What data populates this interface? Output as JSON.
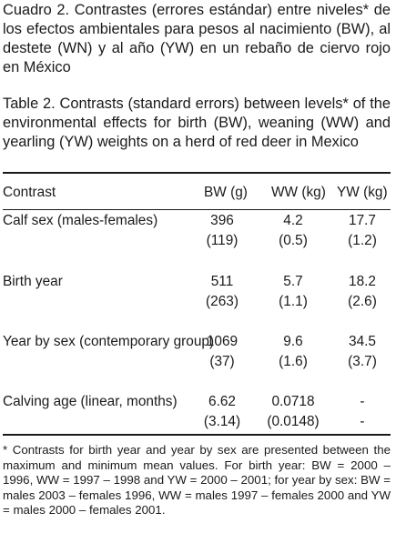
{
  "caption_es": "Cuadro 2. Contrastes (errores estándar) entre niveles* de los efectos ambientales para pesos al nacimiento (BW), al destete (WN) y al año (YW) en un rebaño de ciervo rojo en México",
  "caption_en": "Table 2. Contrasts (standard errors) between levels* of the environmental effects for birth (BW), weaning (WW) and yearling (YW) weights on a herd of red deer in Mexico",
  "table": {
    "headers": {
      "contrast": "Contrast",
      "bw": "BW (g)",
      "ww": "WW (kg)",
      "yw": "YW (kg)"
    },
    "rows": [
      {
        "label": "Calf sex (males-females)",
        "bw": "396",
        "bw_se": "(119)",
        "ww": "4.2",
        "ww_se": "(0.5)",
        "yw": "17.7",
        "yw_se": "(1.2)"
      },
      {
        "label": "Birth year",
        "bw": "511",
        "bw_se": "(263)",
        "ww": "5.7",
        "ww_se": "(1.1)",
        "yw": "18.2",
        "yw_se": "(2.6)"
      },
      {
        "label": "Year by sex (contemporary group)",
        "bw": "1069",
        "bw_se": "(37)",
        "ww": "9.6",
        "ww_se": "(1.6)",
        "yw": "34.5",
        "yw_se": "(3.7)"
      },
      {
        "label": "Calving age (linear, months)",
        "bw": "6.62",
        "bw_se": "(3.14)",
        "ww": "0.0718",
        "ww_se": "(0.0148)",
        "yw": "-",
        "yw_se": "-"
      }
    ]
  },
  "footnote": "* Contrasts for birth year and year by sex are presented between the maximum and minimum mean values. For birth year: BW = 2000 – 1996, WW = 1997 – 1998 and YW = 2000 – 2001; for year by sex: BW = males 2003 – females 1996, WW = males 1997 – females 2000 and YW = males 2000 – females 2001."
}
